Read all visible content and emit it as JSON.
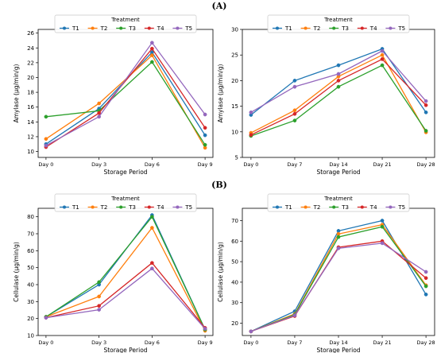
{
  "panel_labels": [
    "(A)",
    "(B)"
  ],
  "colors": {
    "T1": "#1f77b4",
    "T2": "#ff7f0e",
    "T3": "#2ca02c",
    "T4": "#d62728",
    "T5": "#9467bd"
  },
  "chart_data": [
    {
      "type": "line",
      "xlabel": "Storage Period",
      "ylabel": "Amylase (μg/min/g)",
      "legend_title": "Treatment",
      "legend_placement": "top-center",
      "grid": false,
      "categories": [
        "Day 0",
        "Day 3",
        "Day 6",
        "Day 9"
      ],
      "ylim": [
        9.2,
        26.5
      ],
      "yticks": [
        10,
        12,
        14,
        16,
        18,
        20,
        22,
        24,
        26
      ],
      "series": [
        {
          "name": "T1",
          "values": [
            11.0,
            15.8,
            23.4,
            12.2
          ]
        },
        {
          "name": "T2",
          "values": [
            11.7,
            16.5,
            23.0,
            10.5
          ]
        },
        {
          "name": "T3",
          "values": [
            14.7,
            15.5,
            22.1,
            10.9
          ]
        },
        {
          "name": "T4",
          "values": [
            10.6,
            15.2,
            23.9,
            13.2
          ]
        },
        {
          "name": "T5",
          "values": [
            10.8,
            14.7,
            24.7,
            15.0
          ]
        }
      ]
    },
    {
      "type": "line",
      "xlabel": "Storage Period",
      "ylabel": "Amylase (μg/min/g)",
      "legend_title": "Treatment",
      "legend_placement": "top-center",
      "grid": false,
      "categories": [
        "Day 0",
        "Day 7",
        "Day 14",
        "Day 21",
        "Day 28"
      ],
      "ylim": [
        5,
        30
      ],
      "yticks": [
        5,
        10,
        15,
        20,
        25,
        30
      ],
      "series": [
        {
          "name": "T1",
          "values": [
            13.3,
            20.0,
            23.0,
            26.2,
            13.8
          ]
        },
        {
          "name": "T2",
          "values": [
            9.8,
            14.2,
            20.8,
            25.0,
            9.9
          ]
        },
        {
          "name": "T3",
          "values": [
            9.2,
            12.2,
            18.8,
            23.0,
            10.2
          ]
        },
        {
          "name": "T4",
          "values": [
            9.4,
            13.5,
            20.0,
            24.2,
            15.2
          ]
        },
        {
          "name": "T5",
          "values": [
            13.8,
            18.8,
            21.3,
            25.8,
            16.0
          ]
        }
      ]
    },
    {
      "type": "line",
      "xlabel": "Storage Period",
      "ylabel": "Cellulase (μg/min/g)",
      "legend_title": "Treatment",
      "legend_placement": "top-center",
      "grid": false,
      "categories": [
        "Day 0",
        "Day 3",
        "Day 6",
        "Day 9"
      ],
      "ylim": [
        10,
        85
      ],
      "yticks": [
        10,
        20,
        30,
        40,
        50,
        60,
        70,
        80
      ],
      "series": [
        {
          "name": "T1",
          "values": [
            21.0,
            40.0,
            81.0,
            13.5
          ]
        },
        {
          "name": "T2",
          "values": [
            21.0,
            33.0,
            73.5,
            12.8
          ]
        },
        {
          "name": "T3",
          "values": [
            21.0,
            41.5,
            80.0,
            13.5
          ]
        },
        {
          "name": "T4",
          "values": [
            20.5,
            27.5,
            52.8,
            14.5
          ]
        },
        {
          "name": "T5",
          "values": [
            20.5,
            25.2,
            49.5,
            14.0
          ]
        }
      ]
    },
    {
      "type": "line",
      "xlabel": "Storage Period",
      "ylabel": "Cellulase (μg/min/g)",
      "legend_title": "Treatment",
      "legend_placement": "top-center",
      "grid": false,
      "categories": [
        "Day 0",
        "Day 7",
        "Day 14",
        "Day 21",
        "Day 28"
      ],
      "ylim": [
        14,
        76
      ],
      "yticks": [
        20,
        30,
        40,
        50,
        60,
        70
      ],
      "series": [
        {
          "name": "T1",
          "values": [
            16.0,
            25.8,
            65.0,
            70.0,
            34.0
          ]
        },
        {
          "name": "T2",
          "values": [
            16.0,
            24.5,
            63.5,
            68.0,
            38.5
          ]
        },
        {
          "name": "T3",
          "values": [
            16.0,
            24.2,
            62.0,
            67.0,
            38.0
          ]
        },
        {
          "name": "T4",
          "values": [
            16.0,
            23.5,
            57.0,
            60.0,
            42.0
          ]
        },
        {
          "name": "T5",
          "values": [
            16.0,
            23.8,
            56.5,
            59.0,
            45.0
          ]
        }
      ]
    }
  ]
}
